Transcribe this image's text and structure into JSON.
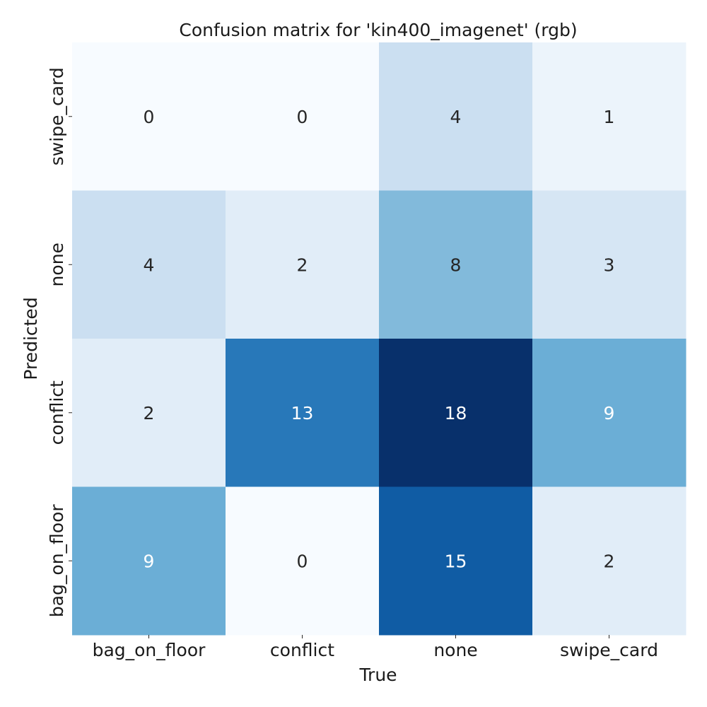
{
  "chart_data": {
    "type": "heatmap",
    "title": "Confusion matrix for 'kin400_imagenet' (rgb)",
    "xlabel": "True",
    "ylabel": "Predicted",
    "x_categories": [
      "bag_on_floor",
      "conflict",
      "none",
      "swipe_card"
    ],
    "y_categories": [
      "swipe_card",
      "none",
      "conflict",
      "bag_on_floor"
    ],
    "values": [
      [
        0,
        0,
        4,
        1
      ],
      [
        4,
        2,
        8,
        3
      ],
      [
        2,
        13,
        18,
        9
      ],
      [
        9,
        0,
        15,
        2
      ]
    ],
    "value_range": [
      0,
      18
    ],
    "colormap": "Blues",
    "colorbar": false
  }
}
